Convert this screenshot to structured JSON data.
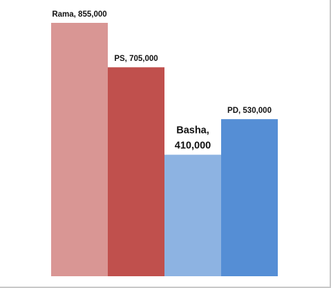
{
  "chart_data": {
    "type": "bar",
    "categories": [
      "Rama",
      "PS",
      "Basha",
      "PD"
    ],
    "values": [
      855000,
      705000,
      410000,
      530000
    ],
    "data_labels": [
      [
        "Rama,  855,000"
      ],
      [
        "PS,  705,000"
      ],
      [
        "Basha,",
        "410,000"
      ],
      [
        "PD,  530,000"
      ]
    ],
    "colors": [
      "#d99694",
      "#c0504d",
      "#8db3e2",
      "#558ed5"
    ],
    "title": "",
    "xlabel": "",
    "ylabel": "",
    "ylim": [
      0,
      855000
    ],
    "grid": false,
    "legend": "none"
  }
}
